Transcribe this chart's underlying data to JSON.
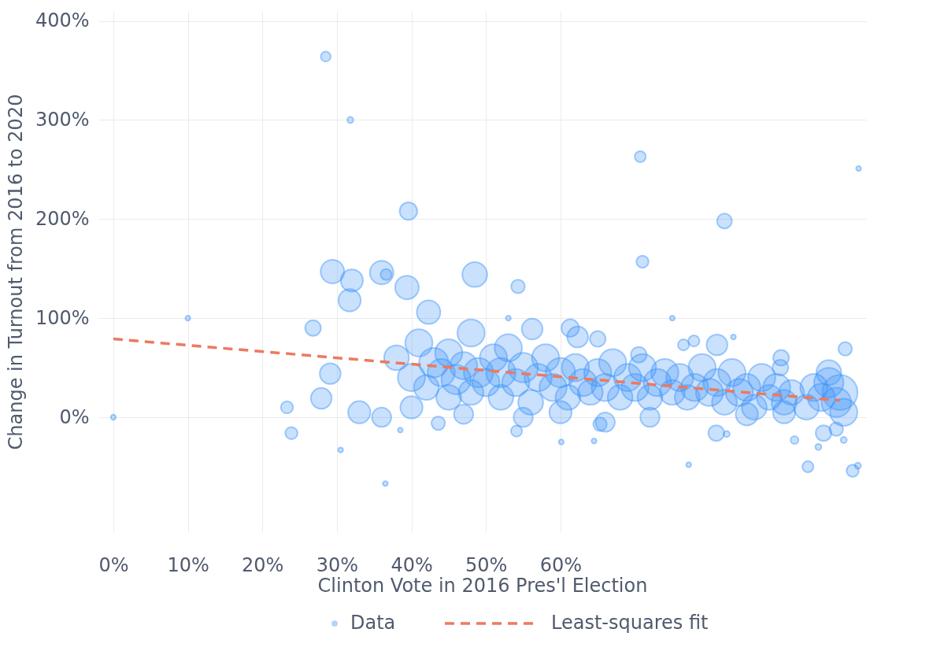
{
  "chart_data": {
    "type": "bubble",
    "xlabel": "Clinton Vote in 2016 Pres'l Election",
    "ylabel": "Change in Turnout from 2016 to 2020",
    "xlim": [
      -2,
      101
    ],
    "ylim": [
      -116,
      410
    ],
    "xticks": [
      {
        "value": 0,
        "label": "0%"
      },
      {
        "value": 10,
        "label": "10%"
      },
      {
        "value": 20,
        "label": "20%"
      },
      {
        "value": 30,
        "label": "30%"
      },
      {
        "value": 40,
        "label": "40%"
      },
      {
        "value": 50,
        "label": "50%"
      },
      {
        "value": 60,
        "label": "60%"
      }
    ],
    "yticks": [
      {
        "value": 0,
        "label": "0%"
      },
      {
        "value": 100,
        "label": "100%"
      },
      {
        "value": 200,
        "label": "200%"
      },
      {
        "value": 300,
        "label": "300%"
      },
      {
        "value": 400,
        "label": "400%"
      }
    ],
    "grid": true,
    "legend": "bottom",
    "series": [
      {
        "name": "Data",
        "color": "#3d93f8",
        "x": [
          0,
          10,
          28.5,
          31.8,
          39.6,
          29.4,
          32,
          31.7,
          36.6,
          36,
          39.4,
          42.3,
          48.5,
          54.3,
          53,
          75,
          70.7,
          71,
          82,
          100,
          98.2,
          26.8,
          23.3,
          23.9,
          29.1,
          27.9,
          36.5,
          38.5,
          30.5,
          43.6,
          54.1,
          60.1,
          64.5,
          65.3,
          77.2,
          80.9,
          82.3,
          91.4,
          93.2,
          94.6,
          95.3,
          97,
          99.2,
          98,
          99.9,
          81,
          89.5,
          89.6,
          76.5,
          77.9,
          83.2,
          70.5,
          61.3,
          62.3,
          56.2,
          65,
          38,
          40,
          41,
          42,
          43,
          44,
          45,
          45,
          46,
          47,
          48,
          48,
          49,
          50,
          51,
          52,
          52,
          53,
          54,
          55,
          56,
          57,
          58,
          59,
          60,
          61,
          62,
          63,
          64,
          65,
          66,
          67,
          68,
          69,
          70,
          71,
          72,
          73,
          74,
          75,
          76,
          77,
          78,
          79,
          80,
          81,
          82,
          83,
          84,
          85,
          86,
          87,
          88,
          89,
          90,
          91,
          93,
          94,
          95,
          96,
          97,
          97.5,
          98,
          96,
          33,
          36,
          40,
          47,
          55,
          60,
          66,
          72,
          85,
          90
        ],
        "values": [
          0,
          100,
          364,
          300,
          208,
          147,
          138,
          118,
          144,
          146,
          131,
          106,
          144,
          132,
          100,
          100,
          263,
          157,
          198,
          251,
          69,
          90,
          10,
          -16,
          44,
          19,
          -67,
          -13,
          -33,
          -6,
          -14,
          -25,
          -24,
          -7,
          -48,
          -16,
          -17,
          -23,
          -50,
          -30,
          -16,
          -12,
          -54,
          -23,
          -49,
          73,
          50,
          60,
          73,
          77,
          81,
          63,
          90,
          81,
          89,
          79,
          60,
          40,
          75,
          30,
          55,
          45,
          20,
          65,
          38,
          52,
          25,
          85,
          45,
          35,
          60,
          20,
          45,
          70,
          35,
          50,
          15,
          40,
          60,
          30,
          45,
          20,
          50,
          35,
          25,
          45,
          30,
          55,
          20,
          40,
          30,
          50,
          20,
          35,
          45,
          25,
          40,
          20,
          30,
          50,
          25,
          35,
          15,
          45,
          25,
          30,
          10,
          40,
          20,
          30,
          15,
          25,
          10,
          30,
          20,
          35,
          15,
          25,
          5,
          45,
          5,
          0,
          10,
          3,
          0,
          5,
          -5,
          0,
          3,
          5
        ],
        "sizes": [
          0.02,
          0.02,
          0.08,
          0.03,
          0.25,
          0.45,
          0.4,
          0.4,
          0.1,
          0.45,
          0.45,
          0.45,
          0.5,
          0.15,
          0.02,
          0.02,
          0.1,
          0.12,
          0.18,
          0.02,
          0.15,
          0.2,
          0.12,
          0.12,
          0.35,
          0.35,
          0.02,
          0.02,
          0.02,
          0.15,
          0.1,
          0.02,
          0.02,
          0.15,
          0.02,
          0.2,
          0.03,
          0.05,
          0.1,
          0.03,
          0.2,
          0.15,
          0.12,
          0.03,
          0.03,
          0.35,
          0.2,
          0.2,
          0.1,
          0.1,
          0.02,
          0.2,
          0.25,
          0.35,
          0.35,
          0.2,
          0.5,
          0.6,
          0.6,
          0.5,
          0.7,
          0.6,
          0.5,
          0.6,
          0.7,
          0.6,
          0.5,
          0.6,
          0.7,
          0.6,
          0.6,
          0.5,
          0.7,
          0.6,
          0.6,
          0.7,
          0.5,
          0.6,
          0.6,
          0.6,
          0.7,
          0.5,
          0.6,
          0.6,
          0.5,
          0.6,
          0.6,
          0.6,
          0.5,
          0.6,
          0.6,
          0.6,
          0.5,
          0.6,
          0.6,
          0.5,
          0.6,
          0.5,
          0.6,
          0.6,
          0.6,
          0.6,
          0.5,
          0.6,
          0.6,
          0.6,
          0.5,
          0.6,
          0.5,
          0.6,
          0.5,
          0.5,
          0.5,
          0.6,
          0.6,
          0.7,
          0.7,
          1,
          0.6,
          0.5,
          0.4,
          0.3,
          0.4,
          0.3,
          0.3,
          0.4,
          0.3,
          0.3,
          0.4,
          0.4
        ]
      },
      {
        "name": "Least-squares fit",
        "type": "line",
        "color": "#ec7a5f",
        "line_style": "dashed",
        "x": [
          0,
          97.5
        ],
        "values": [
          79,
          17
        ]
      }
    ]
  }
}
